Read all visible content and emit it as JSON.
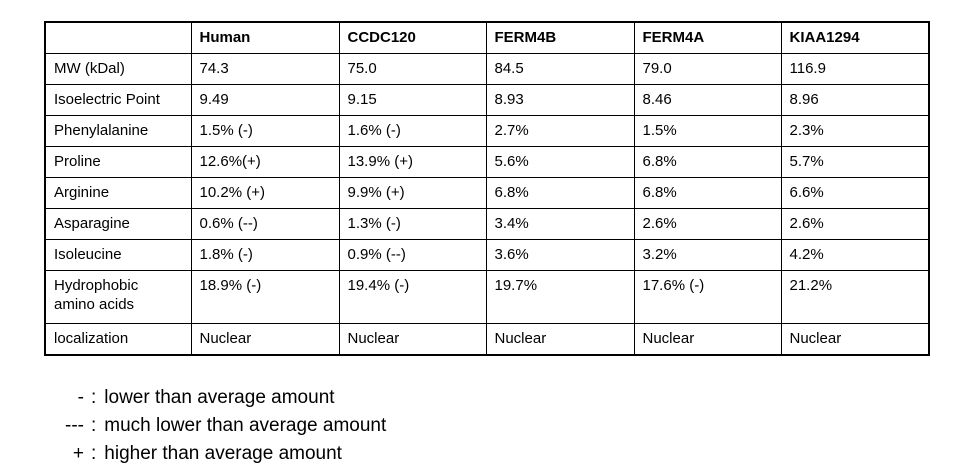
{
  "chart_data": {
    "type": "table",
    "title": "",
    "columns": [
      "",
      "Human",
      "CCDC120",
      "FERM4B",
      "FERM4A",
      "KIAA1294"
    ],
    "rows": [
      [
        "MW (kDal)",
        "74.3",
        "75.0",
        "84.5",
        "79.0",
        "116.9"
      ],
      [
        "Isoelectric Point",
        "9.49",
        "9.15",
        "8.93",
        "8.46",
        "8.96"
      ],
      [
        "Phenylalanine",
        "1.5% (-)",
        "1.6% (-)",
        "2.7%",
        "1.5%",
        "2.3%"
      ],
      [
        "Proline",
        "12.6%(+)",
        "13.9% (+)",
        "5.6%",
        "6.8%",
        "5.7%"
      ],
      [
        "Arginine",
        "10.2% (+)",
        "9.9% (+)",
        "6.8%",
        "6.8%",
        "6.6%"
      ],
      [
        "Asparagine",
        "0.6% (--)",
        "1.3% (-)",
        "3.4%",
        "2.6%",
        "2.6%"
      ],
      [
        "Isoleucine",
        "1.8% (-)",
        "0.9% (--)",
        "3.6%",
        "3.2%",
        "4.2%"
      ],
      [
        "Hydrophobic amino acids",
        "18.9% (-)",
        "19.4% (-)",
        "19.7%",
        "17.6% (-)",
        "21.2%"
      ],
      [
        "localization",
        "Nuclear",
        "Nuclear",
        "Nuclear",
        "Nuclear",
        "Nuclear"
      ]
    ]
  },
  "table": {
    "columns": [
      "",
      "Human",
      "CCDC120",
      "FERM4B",
      "FERM4A",
      "KIAA1294"
    ],
    "rows": [
      {
        "label": "MW (kDal)",
        "values": [
          "74.3",
          "75.0",
          "84.5",
          "79.0",
          "116.9"
        ]
      },
      {
        "label": "Isoelectric Point",
        "values": [
          "9.49",
          "9.15",
          "8.93",
          "8.46",
          "8.96"
        ]
      },
      {
        "label": "Phenylalanine",
        "values": [
          "1.5% (-)",
          "1.6% (-)",
          "2.7%",
          "1.5%",
          "2.3%"
        ]
      },
      {
        "label": "Proline",
        "values": [
          "12.6%(+)",
          "13.9% (+)",
          "5.6%",
          "6.8%",
          "5.7%"
        ]
      },
      {
        "label": "Arginine",
        "values": [
          "10.2% (+)",
          "9.9% (+)",
          "6.8%",
          "6.8%",
          "6.6%"
        ]
      },
      {
        "label": "Asparagine",
        "values": [
          "0.6% (--)",
          "1.3% (-)",
          "3.4%",
          "2.6%",
          "2.6%"
        ]
      },
      {
        "label": "Isoleucine",
        "values": [
          "1.8% (-)",
          "0.9% (--)",
          "3.6%",
          "3.2%",
          "4.2%"
        ]
      },
      {
        "label": "Hydrophobic amino acids",
        "values": [
          "18.9% (-)",
          "19.4% (-)",
          "19.7%",
          "17.6% (-)",
          "21.2%"
        ]
      },
      {
        "label": "localization",
        "values": [
          "Nuclear",
          "Nuclear",
          "Nuclear",
          "Nuclear",
          "Nuclear"
        ]
      }
    ]
  },
  "legend": {
    "separator": ":",
    "items": [
      {
        "symbol": "-",
        "description": "lower than average amount"
      },
      {
        "symbol": "---",
        "description": "much lower than average amount"
      },
      {
        "symbol": "+",
        "description": "higher than average amount"
      }
    ]
  },
  "colors": {
    "background": "#ffffff",
    "border": "#000000",
    "text": "#000000"
  }
}
